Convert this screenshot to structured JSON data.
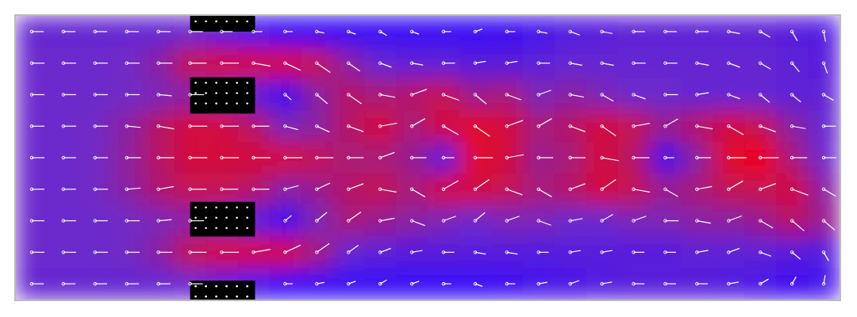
{
  "chart_data": {
    "type": "heatmap",
    "tick_labels": false,
    "xlim": [
      0,
      26
    ],
    "ylim": [
      0,
      9
    ],
    "color_range": [
      0,
      1
    ],
    "cells": [
      [
        0.45,
        0.45,
        0.45,
        0.45,
        0.45,
        0.5,
        0.35,
        0.2,
        0.1,
        0.1,
        0.1,
        0.1,
        0.1,
        0.1,
        0.1,
        0.15,
        0.2,
        0.3,
        0.35,
        0.4,
        0.4,
        0.4,
        0.4,
        0.4,
        0.35,
        0.3
      ],
      [
        0.5,
        0.5,
        0.5,
        0.52,
        0.6,
        0.8,
        0.85,
        0.85,
        0.85,
        0.8,
        0.6,
        0.45,
        0.4,
        0.4,
        0.35,
        0.35,
        0.4,
        0.45,
        0.45,
        0.45,
        0.45,
        0.45,
        0.45,
        0.45,
        0.4,
        0.35
      ],
      [
        0.5,
        0.5,
        0.5,
        0.52,
        0.55,
        0.6,
        0.55,
        0.4,
        0.15,
        0.6,
        0.75,
        0.7,
        0.75,
        0.8,
        0.65,
        0.7,
        0.55,
        0.6,
        0.55,
        0.5,
        0.5,
        0.45,
        0.45,
        0.45,
        0.4,
        0.4
      ],
      [
        0.5,
        0.5,
        0.52,
        0.6,
        0.75,
        0.85,
        0.85,
        0.75,
        0.55,
        0.6,
        0.75,
        0.85,
        0.7,
        0.85,
        0.9,
        0.85,
        0.7,
        0.75,
        0.85,
        0.8,
        0.65,
        0.75,
        0.85,
        0.8,
        0.6,
        0.45
      ],
      [
        0.5,
        0.5,
        0.52,
        0.62,
        0.75,
        0.85,
        0.85,
        0.85,
        0.85,
        0.8,
        0.7,
        0.7,
        0.65,
        0.35,
        0.9,
        0.85,
        0.65,
        0.7,
        0.85,
        0.75,
        0.2,
        0.6,
        0.9,
        0.95,
        0.7,
        0.5
      ],
      [
        0.5,
        0.5,
        0.52,
        0.6,
        0.72,
        0.8,
        0.8,
        0.75,
        0.6,
        0.65,
        0.75,
        0.8,
        0.7,
        0.85,
        0.85,
        0.8,
        0.7,
        0.75,
        0.85,
        0.8,
        0.65,
        0.7,
        0.8,
        0.8,
        0.85,
        0.6
      ],
      [
        0.5,
        0.5,
        0.5,
        0.52,
        0.55,
        0.6,
        0.55,
        0.4,
        0.15,
        0.55,
        0.7,
        0.65,
        0.6,
        0.55,
        0.5,
        0.55,
        0.55,
        0.5,
        0.5,
        0.55,
        0.55,
        0.6,
        0.6,
        0.65,
        0.75,
        0.65
      ],
      [
        0.5,
        0.5,
        0.5,
        0.52,
        0.6,
        0.8,
        0.85,
        0.85,
        0.85,
        0.7,
        0.45,
        0.4,
        0.35,
        0.35,
        0.35,
        0.35,
        0.3,
        0.35,
        0.35,
        0.35,
        0.35,
        0.4,
        0.4,
        0.4,
        0.35,
        0.3
      ],
      [
        0.45,
        0.45,
        0.45,
        0.45,
        0.45,
        0.5,
        0.35,
        0.2,
        0.1,
        0.1,
        0.1,
        0.1,
        0.1,
        0.1,
        0.1,
        0.15,
        0.2,
        0.25,
        0.3,
        0.35,
        0.35,
        0.35,
        0.3,
        0.25,
        0.15,
        0.2
      ]
    ],
    "directions": [
      [
        0,
        0,
        0,
        0,
        0,
        0,
        0,
        0,
        0,
        10,
        20,
        30,
        20,
        0,
        -20,
        0,
        10,
        20,
        10,
        0,
        0,
        0,
        10,
        30,
        60,
        80
      ],
      [
        0,
        0,
        0,
        0,
        0,
        0,
        0,
        10,
        25,
        35,
        35,
        20,
        10,
        0,
        -10,
        -10,
        0,
        10,
        10,
        0,
        0,
        10,
        20,
        30,
        50,
        70
      ],
      [
        0,
        0,
        0,
        0,
        5,
        0,
        0,
        0,
        40,
        40,
        35,
        10,
        -20,
        20,
        40,
        20,
        -20,
        10,
        30,
        20,
        0,
        -10,
        20,
        40,
        40,
        30
      ],
      [
        0,
        0,
        0,
        5,
        10,
        0,
        0,
        0,
        15,
        25,
        20,
        -10,
        -30,
        30,
        35,
        -20,
        -30,
        20,
        35,
        -10,
        -30,
        10,
        30,
        20,
        10,
        0
      ],
      [
        0,
        0,
        0,
        0,
        0,
        0,
        0,
        0,
        0,
        0,
        0,
        -20,
        0,
        0,
        0,
        -10,
        0,
        0,
        10,
        0,
        0,
        0,
        0,
        0,
        0,
        0
      ],
      [
        0,
        0,
        0,
        -5,
        -10,
        0,
        0,
        0,
        -15,
        -25,
        -20,
        10,
        30,
        -30,
        -35,
        20,
        30,
        -20,
        -35,
        10,
        30,
        -10,
        -30,
        -20,
        20,
        30
      ],
      [
        0,
        0,
        0,
        0,
        -5,
        0,
        0,
        0,
        -40,
        -40,
        -35,
        -10,
        20,
        -20,
        -40,
        -20,
        20,
        -10,
        -30,
        -20,
        0,
        10,
        -20,
        30,
        40,
        40
      ],
      [
        0,
        0,
        0,
        0,
        0,
        0,
        0,
        -10,
        -25,
        -35,
        -35,
        -20,
        -10,
        0,
        10,
        10,
        0,
        -10,
        -10,
        0,
        0,
        -10,
        -20,
        20,
        40,
        60
      ],
      [
        0,
        0,
        0,
        0,
        0,
        0,
        0,
        0,
        0,
        -10,
        -20,
        -30,
        -20,
        0,
        20,
        0,
        -10,
        -20,
        -10,
        0,
        0,
        0,
        -10,
        -30,
        -60,
        -80
      ]
    ],
    "obstacles": [
      [
        5.5,
        7.55,
        0,
        0.5
      ],
      [
        5.5,
        7.55,
        1.95,
        3.1
      ],
      [
        5.5,
        7.55,
        5.9,
        7.0
      ],
      [
        5.5,
        7.55,
        8.4,
        9
      ]
    ]
  }
}
